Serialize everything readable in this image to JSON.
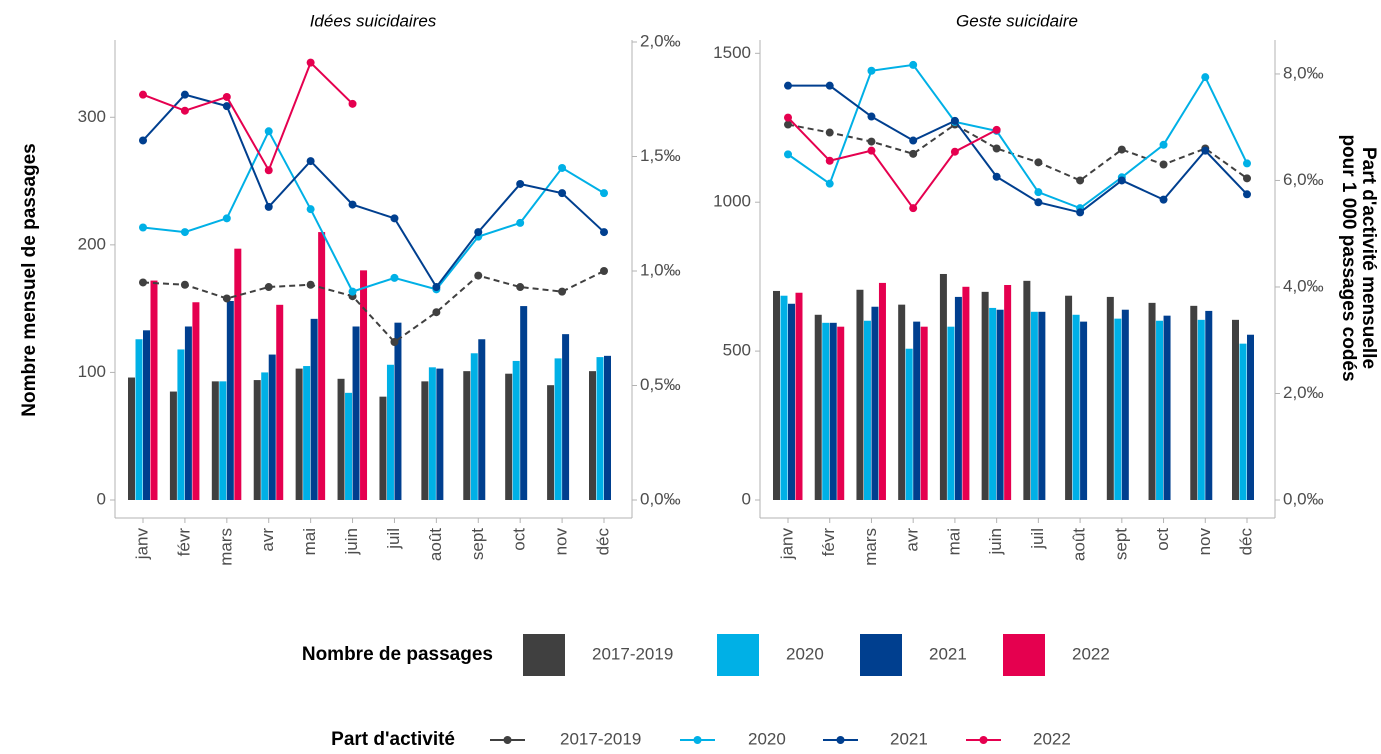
{
  "chart_data": [
    {
      "type": "combo",
      "title": "Idées suicidaires",
      "ylabel": "Nombre mensuel de passages",
      "legend_titles": [
        "Nombre de passages",
        "Part d'activité"
      ],
      "categories": [
        "janv",
        "févr",
        "mars",
        "avr",
        "mai",
        "juin",
        "juil",
        "août",
        "sept",
        "oct",
        "nov",
        "déc"
      ],
      "ylim": [
        0,
        359
      ],
      "yticks": [
        0,
        100,
        200,
        300
      ],
      "y2lim": [
        0,
        2
      ],
      "y2ticks": [
        {
          "value": 0,
          "label": "0,0‰"
        },
        {
          "value": 0.5,
          "label": "0,5‰"
        },
        {
          "value": 1,
          "label": "1,0‰"
        },
        {
          "value": 1.5,
          "label": "1,5‰"
        },
        {
          "value": 2,
          "label": "2,0‰"
        }
      ],
      "series": [
        {
          "name": "2017-2019",
          "kind": "bar",
          "color": "#404040",
          "values": [
            96,
            85,
            93,
            94,
            103,
            95,
            81,
            93,
            101,
            99,
            90,
            101
          ]
        },
        {
          "name": "2020",
          "kind": "bar",
          "color": "#00b0e6",
          "values": [
            126,
            118,
            93,
            100,
            105,
            84,
            106,
            104,
            115,
            109,
            111,
            112
          ]
        },
        {
          "name": "2021",
          "kind": "bar",
          "color": "#003f8f",
          "values": [
            133,
            136,
            156,
            114,
            142,
            136,
            139,
            103,
            126,
            152,
            130,
            113
          ]
        },
        {
          "name": "2022",
          "kind": "bar",
          "color": "#e5004f",
          "values": [
            172,
            155,
            197,
            153,
            210,
            180,
            null,
            null,
            null,
            null,
            null,
            null
          ]
        },
        {
          "name": "2017-2019",
          "kind": "line",
          "axis": "y2",
          "dash": true,
          "color": "#404040",
          "values": [
            0.95,
            0.94,
            0.88,
            0.93,
            0.94,
            0.89,
            0.69,
            0.82,
            0.98,
            0.93,
            0.91,
            1.0
          ]
        },
        {
          "name": "2020",
          "kind": "line",
          "axis": "y2",
          "color": "#00b0e6",
          "values": [
            1.19,
            1.17,
            1.23,
            1.61,
            1.27,
            0.91,
            0.97,
            0.92,
            1.15,
            1.21,
            1.45,
            1.34
          ]
        },
        {
          "name": "2021",
          "kind": "line",
          "axis": "y2",
          "color": "#003f8f",
          "values": [
            1.57,
            1.77,
            1.72,
            1.28,
            1.48,
            1.29,
            1.23,
            0.93,
            1.17,
            1.38,
            1.34,
            1.17
          ]
        },
        {
          "name": "2022",
          "kind": "line",
          "axis": "y2",
          "color": "#e5004f",
          "values": [
            1.77,
            1.7,
            1.76,
            1.44,
            1.91,
            1.73,
            null,
            null,
            null,
            null,
            null,
            null
          ]
        }
      ]
    },
    {
      "type": "combo",
      "title": "Geste suicidaire",
      "y2label": [
        "Part d'activité mensuelle",
        "pour 1 000 passages codés"
      ],
      "categories": [
        "janv",
        "févr",
        "mars",
        "avr",
        "mai",
        "juin",
        "juil",
        "août",
        "sept",
        "oct",
        "nov",
        "déc"
      ],
      "ylim": [
        0,
        1538
      ],
      "yticks": [
        0,
        500,
        1000,
        1500
      ],
      "y2lim": [
        0,
        8.6
      ],
      "y2ticks": [
        {
          "value": 0,
          "label": "0,0‰"
        },
        {
          "value": 2,
          "label": "2,0‰"
        },
        {
          "value": 4,
          "label": "4,0‰"
        },
        {
          "value": 6,
          "label": "6,0‰"
        },
        {
          "value": 8,
          "label": "8,0‰"
        }
      ],
      "series": [
        {
          "name": "2017-2019",
          "kind": "bar",
          "color": "#404040",
          "values": [
            702,
            622,
            706,
            656,
            759,
            699,
            736,
            686,
            682,
            662,
            652,
            605
          ]
        },
        {
          "name": "2020",
          "kind": "bar",
          "color": "#00b0e6",
          "values": [
            686,
            595,
            602,
            508,
            582,
            645,
            632,
            622,
            609,
            602,
            605,
            525
          ]
        },
        {
          "name": "2021",
          "kind": "bar",
          "color": "#003f8f",
          "values": [
            659,
            595,
            649,
            599,
            682,
            639,
            632,
            599,
            639,
            619,
            635,
            555
          ]
        },
        {
          "name": "2022",
          "kind": "bar",
          "color": "#e5004f",
          "values": [
            696,
            582,
            729,
            582,
            716,
            722,
            null,
            null,
            null,
            null,
            null,
            null
          ]
        },
        {
          "name": "2017-2019",
          "kind": "line",
          "axis": "y2",
          "dash": true,
          "color": "#404040",
          "values": [
            7.05,
            6.9,
            6.73,
            6.5,
            7.05,
            6.6,
            6.34,
            6.0,
            6.58,
            6.3,
            6.6,
            6.04
          ]
        },
        {
          "name": "2020",
          "kind": "line",
          "axis": "y2",
          "color": "#00b0e6",
          "values": [
            6.49,
            5.94,
            8.06,
            8.17,
            7.1,
            6.93,
            5.78,
            5.48,
            6.06,
            6.67,
            7.94,
            6.32
          ]
        },
        {
          "name": "2021",
          "kind": "line",
          "axis": "y2",
          "color": "#003f8f",
          "values": [
            7.78,
            7.78,
            7.2,
            6.75,
            7.12,
            6.07,
            5.59,
            5.4,
            6.0,
            5.64,
            6.56,
            5.74
          ]
        },
        {
          "name": "2022",
          "kind": "line",
          "axis": "y2",
          "color": "#e5004f",
          "values": [
            7.18,
            6.37,
            6.56,
            5.48,
            6.54,
            6.95,
            null,
            null,
            null,
            null,
            null,
            null
          ]
        }
      ]
    }
  ]
}
